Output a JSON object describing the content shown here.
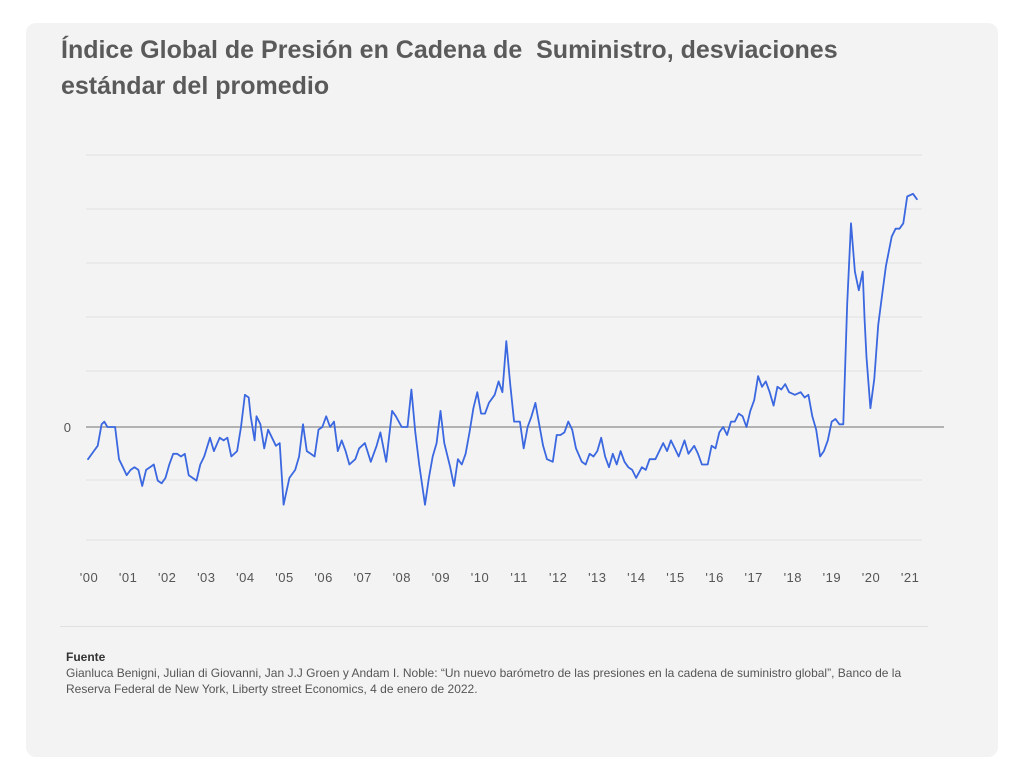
{
  "title": "Índice Global de Presión en Cadena de  Suministro, desviaciones estándar del promedio",
  "source": {
    "heading": "Fuente",
    "text": "Gianluca Benigni, Julian di Giovanni, Jan J.J Groen y Andam I. Noble: “Un nuevo barómetro de las presiones en la cadena de suministro global”, Banco de la Reserva Federal de New York, Liberty street Economics, 4 de enero de 2022."
  },
  "colors": {
    "line": "#3b68e0",
    "grid": "#e0e0e0",
    "zero_line": "#8a8a8a",
    "card": "#f3f3f3"
  },
  "chart_data": {
    "type": "line",
    "title": "Índice Global de Presión en Cadena de  Suministro, desviaciones estándar del promedio",
    "xlabel": "",
    "ylabel": "",
    "y_tick_labels": [
      "0"
    ],
    "x_tick_labels": [
      "'00",
      "'01",
      "'02",
      "'03",
      "'04",
      "'05",
      "'06",
      "'07",
      "'08",
      "'09",
      "'10",
      "'11",
      "'12",
      "'13",
      "'14",
      "'15",
      "'16",
      "'17",
      "'18",
      "'19",
      "'20",
      "'21"
    ],
    "xlim": [
      2000.0,
      2022.1
    ],
    "ylim": [
      -2.1,
      5.0
    ],
    "grid": true,
    "series": [
      {
        "points": [
          [
            2000.0,
            -0.6
          ],
          [
            2000.15,
            -0.45
          ],
          [
            2000.25,
            -0.35
          ],
          [
            2000.35,
            0.05
          ],
          [
            2000.42,
            0.1
          ],
          [
            2000.5,
            0.0
          ],
          [
            2000.6,
            0.0
          ],
          [
            2000.7,
            0.0
          ],
          [
            2000.8,
            -0.6
          ],
          [
            2000.9,
            -0.75
          ],
          [
            2001.0,
            -0.9
          ],
          [
            2001.1,
            -0.8
          ],
          [
            2001.2,
            -0.75
          ],
          [
            2001.3,
            -0.8
          ],
          [
            2001.4,
            -1.1
          ],
          [
            2001.5,
            -0.8
          ],
          [
            2001.6,
            -0.75
          ],
          [
            2001.7,
            -0.7
          ],
          [
            2001.8,
            -1.0
          ],
          [
            2001.9,
            -1.05
          ],
          [
            2002.0,
            -0.95
          ],
          [
            2002.1,
            -0.7
          ],
          [
            2002.2,
            -0.5
          ],
          [
            2002.3,
            -0.5
          ],
          [
            2002.4,
            -0.55
          ],
          [
            2002.5,
            -0.5
          ],
          [
            2002.6,
            -0.9
          ],
          [
            2002.7,
            -0.95
          ],
          [
            2002.8,
            -1.0
          ],
          [
            2002.9,
            -0.7
          ],
          [
            2003.0,
            -0.55
          ],
          [
            2003.15,
            -0.2
          ],
          [
            2003.25,
            -0.45
          ],
          [
            2003.4,
            -0.2
          ],
          [
            2003.5,
            -0.25
          ],
          [
            2003.6,
            -0.2
          ],
          [
            2003.7,
            -0.55
          ],
          [
            2003.85,
            -0.45
          ],
          [
            2003.95,
            0.0
          ],
          [
            2004.05,
            0.6
          ],
          [
            2004.15,
            0.55
          ],
          [
            2004.2,
            0.2
          ],
          [
            2004.3,
            -0.25
          ],
          [
            2004.35,
            0.2
          ],
          [
            2004.45,
            0.05
          ],
          [
            2004.55,
            -0.4
          ],
          [
            2004.65,
            -0.05
          ],
          [
            2004.75,
            -0.2
          ],
          [
            2004.85,
            -0.35
          ],
          [
            2004.95,
            -0.3
          ],
          [
            2005.05,
            -1.45
          ],
          [
            2005.2,
            -0.95
          ],
          [
            2005.35,
            -0.8
          ],
          [
            2005.45,
            -0.55
          ],
          [
            2005.55,
            0.05
          ],
          [
            2005.65,
            -0.45
          ],
          [
            2005.75,
            -0.5
          ],
          [
            2005.85,
            -0.55
          ],
          [
            2005.95,
            -0.05
          ],
          [
            2006.05,
            0.0
          ],
          [
            2006.15,
            0.2
          ],
          [
            2006.25,
            0.0
          ],
          [
            2006.35,
            0.1
          ],
          [
            2006.45,
            -0.45
          ],
          [
            2006.55,
            -0.25
          ],
          [
            2006.65,
            -0.45
          ],
          [
            2006.75,
            -0.7
          ],
          [
            2006.9,
            -0.6
          ],
          [
            2007.0,
            -0.4
          ],
          [
            2007.15,
            -0.3
          ],
          [
            2007.3,
            -0.65
          ],
          [
            2007.45,
            -0.35
          ],
          [
            2007.55,
            -0.1
          ],
          [
            2007.7,
            -0.65
          ],
          [
            2007.85,
            0.3
          ],
          [
            2007.95,
            0.2
          ],
          [
            2008.1,
            0.0
          ],
          [
            2008.25,
            0.0
          ],
          [
            2008.35,
            0.7
          ],
          [
            2008.45,
            -0.1
          ],
          [
            2008.55,
            -0.7
          ],
          [
            2008.7,
            -1.45
          ],
          [
            2008.8,
            -0.95
          ],
          [
            2008.9,
            -0.55
          ],
          [
            2009.0,
            -0.3
          ],
          [
            2009.1,
            0.3
          ],
          [
            2009.2,
            -0.3
          ],
          [
            2009.35,
            -0.75
          ],
          [
            2009.45,
            -1.1
          ],
          [
            2009.55,
            -0.6
          ],
          [
            2009.65,
            -0.7
          ],
          [
            2009.75,
            -0.5
          ],
          [
            2009.85,
            -0.1
          ],
          [
            2009.95,
            0.35
          ],
          [
            2010.05,
            0.65
          ],
          [
            2010.15,
            0.25
          ],
          [
            2010.25,
            0.25
          ],
          [
            2010.35,
            0.45
          ],
          [
            2010.5,
            0.6
          ],
          [
            2010.6,
            0.85
          ],
          [
            2010.7,
            0.65
          ],
          [
            2010.8,
            1.6
          ],
          [
            2010.9,
            0.8
          ],
          [
            2011.0,
            0.1
          ],
          [
            2011.15,
            0.1
          ],
          [
            2011.25,
            -0.4
          ],
          [
            2011.35,
            0.0
          ],
          [
            2011.45,
            0.2
          ],
          [
            2011.55,
            0.45
          ],
          [
            2011.65,
            0.05
          ],
          [
            2011.75,
            -0.35
          ],
          [
            2011.85,
            -0.6
          ],
          [
            2012.0,
            -0.65
          ],
          [
            2012.1,
            -0.15
          ],
          [
            2012.2,
            -0.15
          ],
          [
            2012.3,
            -0.1
          ],
          [
            2012.4,
            0.1
          ],
          [
            2012.5,
            -0.05
          ],
          [
            2012.6,
            -0.4
          ],
          [
            2012.75,
            -0.65
          ],
          [
            2012.85,
            -0.7
          ],
          [
            2012.95,
            -0.5
          ],
          [
            2013.05,
            -0.55
          ],
          [
            2013.15,
            -0.45
          ],
          [
            2013.25,
            -0.2
          ],
          [
            2013.35,
            -0.55
          ],
          [
            2013.45,
            -0.75
          ],
          [
            2013.55,
            -0.5
          ],
          [
            2013.65,
            -0.7
          ],
          [
            2013.75,
            -0.45
          ],
          [
            2013.85,
            -0.65
          ],
          [
            2013.95,
            -0.75
          ],
          [
            2014.05,
            -0.8
          ],
          [
            2014.15,
            -0.95
          ],
          [
            2014.3,
            -0.75
          ],
          [
            2014.4,
            -0.8
          ],
          [
            2014.5,
            -0.6
          ],
          [
            2014.65,
            -0.6
          ],
          [
            2014.75,
            -0.45
          ],
          [
            2014.85,
            -0.3
          ],
          [
            2014.95,
            -0.45
          ],
          [
            2015.05,
            -0.25
          ],
          [
            2015.15,
            -0.4
          ],
          [
            2015.25,
            -0.55
          ],
          [
            2015.4,
            -0.25
          ],
          [
            2015.5,
            -0.5
          ],
          [
            2015.65,
            -0.35
          ],
          [
            2015.75,
            -0.5
          ],
          [
            2015.85,
            -0.7
          ],
          [
            2016.0,
            -0.7
          ],
          [
            2016.1,
            -0.35
          ],
          [
            2016.2,
            -0.4
          ],
          [
            2016.3,
            -0.1
          ],
          [
            2016.4,
            0.0
          ],
          [
            2016.5,
            -0.15
          ],
          [
            2016.6,
            0.1
          ],
          [
            2016.7,
            0.1
          ],
          [
            2016.8,
            0.25
          ],
          [
            2016.9,
            0.2
          ],
          [
            2017.0,
            0.0
          ],
          [
            2017.1,
            0.3
          ],
          [
            2017.2,
            0.5
          ],
          [
            2017.3,
            0.95
          ],
          [
            2017.4,
            0.75
          ],
          [
            2017.5,
            0.85
          ],
          [
            2017.6,
            0.65
          ],
          [
            2017.7,
            0.4
          ],
          [
            2017.8,
            0.75
          ],
          [
            2017.9,
            0.7
          ],
          [
            2018.0,
            0.8
          ],
          [
            2018.1,
            0.65
          ],
          [
            2018.25,
            0.6
          ],
          [
            2018.4,
            0.65
          ],
          [
            2018.5,
            0.55
          ],
          [
            2018.6,
            0.6
          ],
          [
            2018.7,
            0.2
          ],
          [
            2018.8,
            -0.05
          ],
          [
            2018.9,
            -0.55
          ],
          [
            2019.0,
            -0.45
          ],
          [
            2019.1,
            -0.25
          ],
          [
            2019.2,
            0.1
          ],
          [
            2019.3,
            0.15
          ],
          [
            2019.4,
            0.05
          ],
          [
            2019.5,
            0.05
          ],
          [
            2019.6,
            2.3
          ],
          [
            2019.7,
            3.8
          ],
          [
            2019.8,
            2.9
          ],
          [
            2019.9,
            2.55
          ],
          [
            2020.0,
            2.9
          ],
          [
            2020.05,
            2.0
          ],
          [
            2020.1,
            1.3
          ],
          [
            2020.2,
            0.35
          ],
          [
            2020.3,
            0.9
          ],
          [
            2020.4,
            1.9
          ],
          [
            2020.5,
            2.45
          ],
          [
            2020.6,
            3.0
          ],
          [
            2020.75,
            3.55
          ],
          [
            2020.85,
            3.7
          ],
          [
            2020.95,
            3.7
          ],
          [
            2021.05,
            3.8
          ],
          [
            2021.15,
            4.3
          ],
          [
            2021.3,
            4.35
          ],
          [
            2021.4,
            4.25
          ]
        ]
      }
    ]
  }
}
